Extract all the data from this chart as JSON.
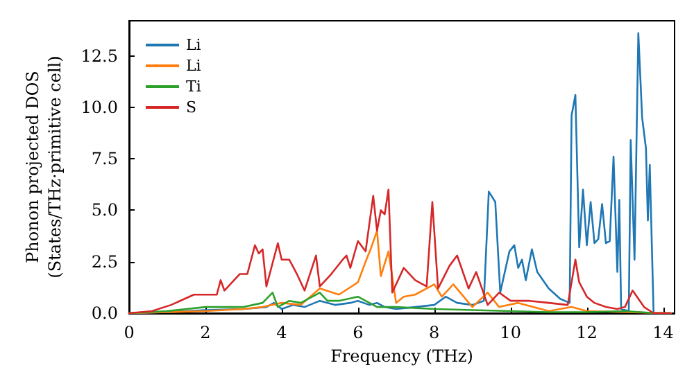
{
  "chart_data": {
    "type": "line",
    "xlabel": "Frequency (THz)",
    "ylabel": "Phonon projected DOS\n(States/THz·primitive cell)",
    "xlim": [
      0,
      14.3
    ],
    "ylim": [
      0,
      14.2
    ],
    "xticks": [
      0,
      2,
      4,
      6,
      8,
      10,
      12,
      14
    ],
    "yticks": [
      {
        "value": 0,
        "label": "0.0"
      },
      {
        "value": 2.5,
        "label": "2.5"
      },
      {
        "value": 5,
        "label": "5.0"
      },
      {
        "value": 7.5,
        "label": "7.5"
      },
      {
        "value": 10,
        "label": "10.0"
      },
      {
        "value": 12.5,
        "label": "12.5"
      }
    ],
    "grid": false,
    "legend": "top left",
    "marker": "none",
    "line_style": "solid",
    "series": [
      {
        "name": "Li",
        "color": "#1f77b4",
        "x": [
          0,
          1,
          2,
          3,
          3.6,
          3.8,
          4.0,
          4.3,
          4.6,
          5.0,
          5.4,
          5.8,
          6.0,
          6.3,
          6.5,
          6.7,
          7.0,
          7.5,
          8.0,
          8.3,
          8.6,
          9.0,
          9.3,
          9.43,
          9.6,
          9.73,
          9.97,
          10.1,
          10.2,
          10.3,
          10.4,
          10.56,
          10.7,
          11.0,
          11.3,
          11.55,
          11.6,
          11.7,
          11.8,
          11.9,
          12.0,
          12.1,
          12.2,
          12.3,
          12.4,
          12.5,
          12.6,
          12.7,
          12.8,
          12.85,
          12.9,
          13.1,
          13.15,
          13.25,
          13.35,
          13.45,
          13.55,
          13.6,
          13.65,
          13.75,
          14.2
        ],
        "values": [
          0,
          0.05,
          0.15,
          0.2,
          0.3,
          0.5,
          0.2,
          0.4,
          0.3,
          0.6,
          0.4,
          0.5,
          0.6,
          0.4,
          0.5,
          0.3,
          0.2,
          0.3,
          0.4,
          0.8,
          0.5,
          0.4,
          0.6,
          5.9,
          5.4,
          1.0,
          3.0,
          3.3,
          2.2,
          2.6,
          1.6,
          3.1,
          2.0,
          1.2,
          0.7,
          0.5,
          9.6,
          10.6,
          3.2,
          6.0,
          3.3,
          5.4,
          3.4,
          3.6,
          5.3,
          3.4,
          3.5,
          7.6,
          2.0,
          5.5,
          0.2,
          0.1,
          8.4,
          2.6,
          13.6,
          9.5,
          8.0,
          4.5,
          7.2,
          0,
          0
        ]
      },
      {
        "name": "Li",
        "color": "#ff7f0e",
        "x": [
          0,
          1,
          2,
          3,
          3.5,
          4.0,
          4.5,
          5.0,
          5.5,
          6.0,
          6.2,
          6.35,
          6.5,
          6.6,
          6.8,
          7.0,
          7.2,
          7.5,
          8.0,
          8.2,
          8.5,
          9.0,
          9.4,
          9.7,
          10.2,
          11,
          11.6,
          12,
          13,
          14.2
        ],
        "values": [
          0,
          0.05,
          0.1,
          0.2,
          0.3,
          0.5,
          0.4,
          1.2,
          0.9,
          1.5,
          2.5,
          3.2,
          4.0,
          1.8,
          3.0,
          0.5,
          0.8,
          0.9,
          1.4,
          0.8,
          1.4,
          0.3,
          1.0,
          0.3,
          0.5,
          0.1,
          0.3,
          0.1,
          0.05,
          0
        ]
      },
      {
        "name": "Ti",
        "color": "#2ca02c",
        "x": [
          0,
          1,
          1.5,
          2,
          3,
          3.5,
          3.76,
          3.9,
          4.2,
          4.5,
          5.0,
          5.2,
          5.5,
          6.0,
          6.5,
          7,
          8,
          9,
          10,
          11,
          12,
          13,
          13.8,
          14.2
        ],
        "values": [
          0,
          0.1,
          0.2,
          0.3,
          0.3,
          0.5,
          1.0,
          0.3,
          0.6,
          0.5,
          1.0,
          0.6,
          0.6,
          0.8,
          0.3,
          0.3,
          0.2,
          0.15,
          0.1,
          0.05,
          0.05,
          0.1,
          0,
          0
        ]
      },
      {
        "name": "S",
        "color": "#d62728",
        "x": [
          0,
          0.6,
          1.1,
          1.7,
          2.3,
          2.4,
          2.5,
          2.9,
          3.1,
          3.3,
          3.4,
          3.5,
          3.6,
          3.9,
          4.0,
          4.2,
          4.4,
          4.6,
          4.9,
          5.0,
          5.3,
          5.6,
          5.7,
          5.8,
          6.0,
          6.2,
          6.4,
          6.5,
          6.6,
          6.7,
          6.8,
          6.9,
          7.2,
          7.5,
          7.8,
          7.95,
          8.1,
          8.4,
          8.6,
          8.9,
          9.1,
          9.4,
          9.7,
          10.0,
          10.5,
          11.0,
          11.5,
          11.7,
          11.8,
          12.0,
          12.2,
          12.5,
          12.8,
          13.0,
          13.2,
          13.5,
          13.75,
          14.2
        ],
        "values": [
          0,
          0.1,
          0.4,
          0.9,
          0.9,
          1.6,
          1.1,
          1.9,
          1.9,
          3.3,
          2.9,
          3.1,
          1.3,
          3.4,
          2.6,
          2.6,
          1.9,
          1.1,
          2.8,
          1.3,
          1.9,
          2.6,
          2.8,
          2.2,
          3.5,
          3.0,
          5.7,
          4.0,
          5.0,
          4.8,
          6.0,
          1.0,
          2.2,
          1.6,
          1.3,
          5.4,
          1.2,
          2.3,
          2.8,
          1.2,
          2.0,
          0.4,
          1.0,
          0.6,
          0.6,
          0.5,
          0.4,
          2.6,
          1.5,
          0.8,
          0.5,
          0.3,
          0.2,
          0.3,
          1.1,
          0.3,
          0,
          0
        ]
      }
    ]
  }
}
